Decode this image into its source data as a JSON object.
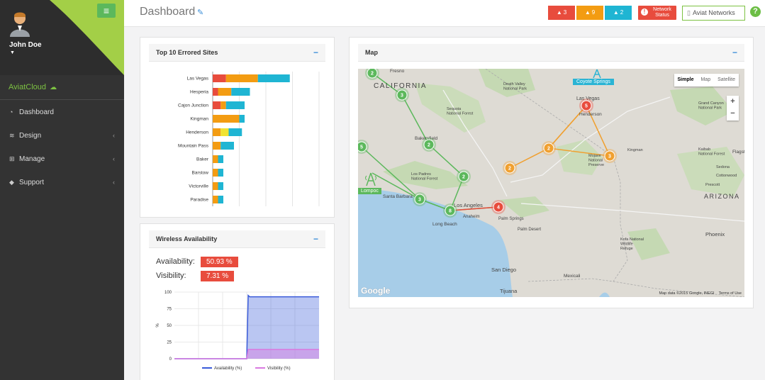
{
  "sidebar": {
    "user_name": "John Doe",
    "brand": "AviatCloud",
    "items": [
      {
        "label": "Dashboard",
        "icon": "dashboard-icon"
      },
      {
        "label": "Design",
        "icon": "wifi-icon"
      },
      {
        "label": "Manage",
        "icon": "sitemap-icon"
      },
      {
        "label": "Support",
        "icon": "tag-icon"
      }
    ]
  },
  "header": {
    "title": "Dashboard",
    "alerts": [
      {
        "count": "3",
        "color": "#e84c3d"
      },
      {
        "count": "9",
        "color": "#f39c12"
      },
      {
        "count": "2",
        "color": "#1fb5d3"
      }
    ],
    "network_status_label": "Network Status",
    "org_button_label": "Aviat Networks"
  },
  "errored_sites": {
    "title": "Top 10 Errored Sites",
    "colors": [
      "#e84c3d",
      "#f39c12",
      "#f1e332",
      "#1fb5d3"
    ],
    "chart_data": {
      "type": "bar",
      "orientation": "horizontal",
      "stacked": true,
      "categories": [
        "Las Vegas",
        "Hesperia",
        "Cajon Junction",
        "Kingman",
        "Henderson",
        "Mountain Pass",
        "Baker",
        "Barstow",
        "Victorville",
        "Paradise"
      ],
      "series": [
        {
          "values": [
            5,
            2,
            3,
            0,
            0,
            0,
            0,
            0,
            0,
            0
          ]
        },
        {
          "values": [
            12,
            5,
            2,
            10,
            3,
            3,
            2,
            2,
            2,
            2
          ]
        },
        {
          "values": [
            0,
            0,
            0,
            0,
            3,
            0,
            0,
            0,
            0,
            0
          ]
        },
        {
          "values": [
            12,
            7,
            7,
            2,
            5,
            5,
            2,
            2,
            2,
            2
          ]
        }
      ],
      "xlim": [
        0,
        40
      ],
      "grid": true
    }
  },
  "wireless": {
    "title": "Wireless Availability",
    "availability_label": "Availability:",
    "availability_value": "50.93 %",
    "visibility_label": "Visibility:",
    "visibility_value": "7.31 %",
    "chart_data": {
      "type": "area",
      "ylabel": "%",
      "ylim": [
        0,
        100
      ],
      "yticks": [
        "0",
        "25",
        "50",
        "75",
        "100"
      ],
      "x": [
        0,
        0.5,
        0.51,
        0.52,
        1
      ],
      "series": [
        {
          "name": "Availability (%)",
          "color": "#3a5bd9",
          "values": [
            0,
            0,
            95,
            93,
            93
          ]
        },
        {
          "name": "Visibility (%)",
          "color": "#d97ae0",
          "values": [
            0,
            0,
            14,
            14,
            14
          ]
        }
      ],
      "legend_position": "bottom"
    }
  },
  "map": {
    "title": "Map",
    "map_types": [
      "Simple",
      "Map",
      "Satellite"
    ],
    "zoom_in": "+",
    "zoom_out": "−",
    "footer_data": "Map data ©2015 Google, INEGI",
    "footer_terms": "Terms of Use",
    "google": "Google",
    "callouts": {
      "coyote": "Coyote Springs",
      "lompoc": "Lompoc"
    },
    "places": [
      "Fresno",
      "CALIFORNIA",
      "Death Valley\nNational Park",
      "Sequoia\nNational Forest",
      "Bakersfield",
      "Las Vegas",
      "Henderson",
      "Grand Canyon\nNational Park",
      "Flagstaff",
      "Kingman",
      "Mojave\nNational\nPreserve",
      "Kaibab\nNational Forest",
      "Sedona",
      "Cottonwood",
      "Santa Barbara",
      "Los Padres\nNational Forest",
      "Los Angeles",
      "Anaheim",
      "Long Beach",
      "Palm Springs",
      "Palm Desert",
      "ARIZONA",
      "Phoenix",
      "Kofa National\nWildlife\nRefuge",
      "San Diego",
      "Mexicali",
      "Tijuana",
      "Prescott"
    ],
    "clusters": [
      {
        "count": "2",
        "status": "ok"
      },
      {
        "count": "3",
        "status": "ok"
      },
      {
        "count": "2",
        "status": "ok"
      },
      {
        "count": "2",
        "status": "ok"
      },
      {
        "count": "5",
        "status": "ok"
      },
      {
        "count": "3",
        "status": "ok"
      },
      {
        "count": "8",
        "status": "ok"
      },
      {
        "count": "5",
        "status": "critical"
      },
      {
        "count": "4",
        "status": "critical"
      },
      {
        "count": "2",
        "status": "warning"
      },
      {
        "count": "2",
        "status": "warning"
      },
      {
        "count": "3",
        "status": "warning"
      }
    ],
    "colors": {
      "ok": "#5cb85c",
      "warning": "#f0a030",
      "critical": "#e84c3d",
      "water": "#a7cde8",
      "land": "#dedbd4",
      "park": "#c5d9b3"
    }
  }
}
